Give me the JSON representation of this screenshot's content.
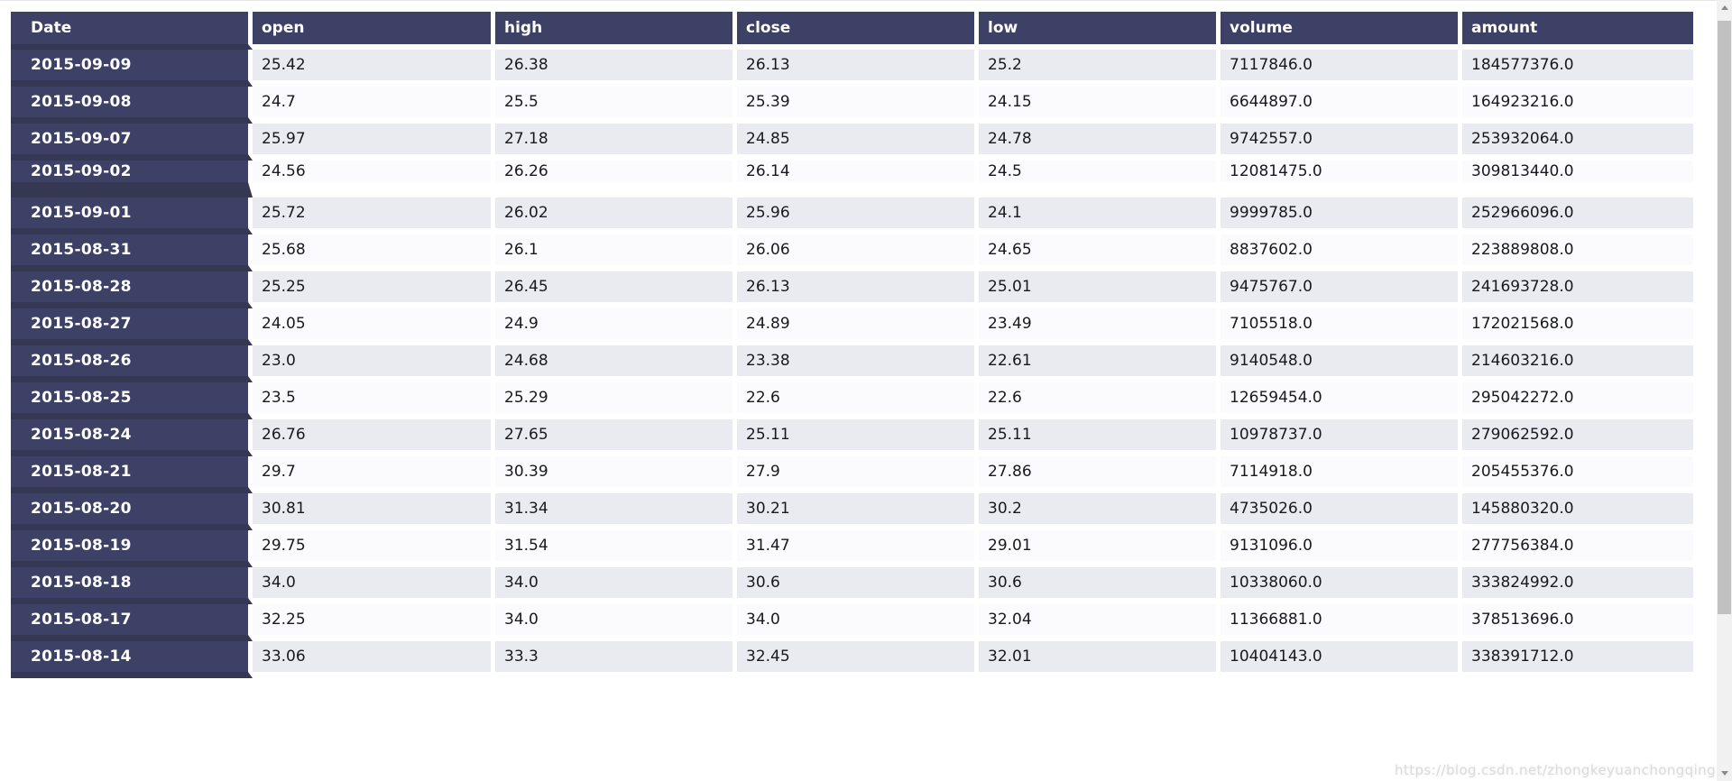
{
  "page": {
    "watermark": "https://blog.csdn.net/zhongkeyuanchongqing"
  },
  "table": {
    "columns": [
      "Date",
      "open",
      "high",
      "close",
      "low",
      "volume",
      "amount"
    ],
    "rows": [
      [
        "2015-09-09",
        "25.42",
        "26.38",
        "26.13",
        "25.2",
        "7117846.0",
        "184577376.0"
      ],
      [
        "2015-09-08",
        "24.7",
        "25.5",
        "25.39",
        "24.15",
        "6644897.0",
        "164923216.0"
      ],
      [
        "2015-09-07",
        "25.97",
        "27.18",
        "24.85",
        "24.78",
        "9742557.0",
        "253932064.0"
      ],
      [
        "2015-09-02",
        "24.56",
        "26.26",
        "26.14",
        "24.5",
        "12081475.0",
        "309813440.0"
      ],
      [
        "2015-09-01",
        "25.72",
        "26.02",
        "25.96",
        "24.1",
        "9999785.0",
        "252966096.0"
      ],
      [
        "2015-08-31",
        "25.68",
        "26.1",
        "26.06",
        "24.65",
        "8837602.0",
        "223889808.0"
      ],
      [
        "2015-08-28",
        "25.25",
        "26.45",
        "26.13",
        "25.01",
        "9475767.0",
        "241693728.0"
      ],
      [
        "2015-08-27",
        "24.05",
        "24.9",
        "24.89",
        "23.49",
        "7105518.0",
        "172021568.0"
      ],
      [
        "2015-08-26",
        "23.0",
        "24.68",
        "23.38",
        "22.61",
        "9140548.0",
        "214603216.0"
      ],
      [
        "2015-08-25",
        "23.5",
        "25.29",
        "22.6",
        "22.6",
        "12659454.0",
        "295042272.0"
      ],
      [
        "2015-08-24",
        "26.76",
        "27.65",
        "25.11",
        "25.11",
        "10978737.0",
        "279062592.0"
      ],
      [
        "2015-08-21",
        "29.7",
        "30.39",
        "27.9",
        "27.86",
        "7114918.0",
        "205455376.0"
      ],
      [
        "2015-08-20",
        "30.81",
        "31.34",
        "30.21",
        "30.2",
        "4735026.0",
        "145880320.0"
      ],
      [
        "2015-08-19",
        "29.75",
        "31.54",
        "31.47",
        "29.01",
        "9131096.0",
        "277756384.0"
      ],
      [
        "2015-08-18",
        "34.0",
        "34.0",
        "30.6",
        "30.6",
        "10338060.0",
        "333824992.0"
      ],
      [
        "2015-08-17",
        "32.25",
        "34.0",
        "34.0",
        "32.04",
        "11366881.0",
        "378513696.0"
      ],
      [
        "2015-08-14",
        "33.06",
        "33.3",
        "32.45",
        "32.01",
        "10404143.0",
        "338391712.0"
      ]
    ],
    "group_gap_after_dates": [
      "2015-09-02"
    ]
  },
  "colors": {
    "header_bg": "#3d4166",
    "date_cell_separator": "#343853",
    "row_shade_bg": "#eaebf1",
    "row_plain_bg": "#fbfbfd",
    "data_text": "#17191f",
    "header_text": "#ffffff",
    "watermark_text": "#dcdcdc",
    "scrollbar_track": "#f1f1f1",
    "scrollbar_thumb": "#c1c1c1"
  }
}
